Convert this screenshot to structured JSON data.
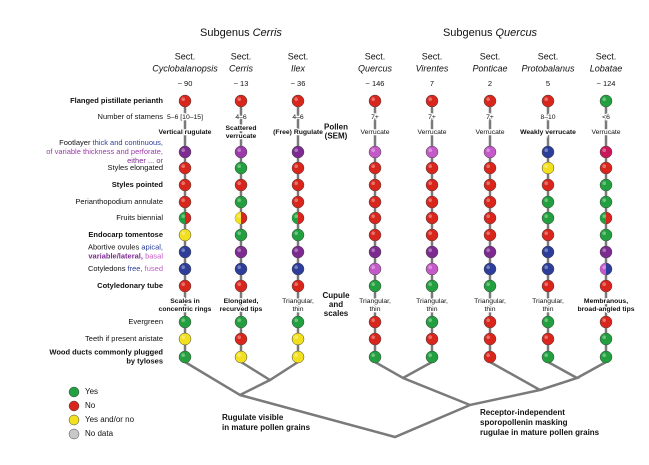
{
  "subgenera": [
    {
      "prefix": "Subgenus",
      "name": "Cerris"
    },
    {
      "prefix": "Subgenus",
      "name": "Quercus"
    }
  ],
  "sections": [
    {
      "prefix": "Sect.",
      "name": "Cyclobalanopsis",
      "count": "~ 90"
    },
    {
      "prefix": "Sect.",
      "name": "Cerris",
      "count": "~ 13"
    },
    {
      "prefix": "Sect.",
      "name": "Ilex",
      "count": "~ 36"
    },
    {
      "prefix": "Sect.",
      "name": "Quercus",
      "count": "~ 146"
    },
    {
      "prefix": "Sect.",
      "name": "Virentes",
      "count": "7"
    },
    {
      "prefix": "Sect.",
      "name": "Ponticae",
      "count": "2"
    },
    {
      "prefix": "Sect.",
      "name": "Protobalanus",
      "count": "5"
    },
    {
      "prefix": "Sect.",
      "name": "Lobatae",
      "count": "~ 124"
    }
  ],
  "rows": [
    {
      "label": [
        [
          {
            "text": "Flanged pistillate perianth"
          }
        ]
      ],
      "bold": true,
      "states": [
        "#d9261c",
        "#d9261c",
        "#d9261c",
        "#d9261c",
        "#d9261c",
        "#d9261c",
        "#d9261c",
        "#22a040"
      ]
    },
    {
      "label": [
        [
          {
            "text": "Number of stamens"
          }
        ]
      ],
      "texts": [
        {
          "lines": [
            "5–6 [10–15]"
          ]
        },
        {
          "lines": [
            "4–6"
          ]
        },
        {
          "lines": [
            "4–6"
          ]
        },
        {
          "lines": [
            "7+"
          ]
        },
        {
          "lines": [
            "7+"
          ]
        },
        {
          "lines": [
            "7+"
          ]
        },
        {
          "lines": [
            "8–10"
          ]
        },
        {
          "lines": [
            "<6"
          ]
        }
      ]
    },
    {
      "side_label": [
        "Pollen",
        "(SEM)"
      ],
      "texts": [
        {
          "lines": [
            "Vertical rugulate"
          ],
          "bold": true
        },
        {
          "lines": [
            "Scattered",
            "verrucate"
          ],
          "bold": true
        },
        {
          "lines": [
            "(Free) Rugulate"
          ],
          "bold": true
        },
        {
          "lines": [
            "Verrucate"
          ]
        },
        {
          "lines": [
            "Verrucate"
          ]
        },
        {
          "lines": [
            "Verrucate"
          ]
        },
        {
          "lines": [
            "Weakly verrucate"
          ],
          "bold": true
        },
        {
          "lines": [
            "Verrucate"
          ]
        }
      ]
    },
    {
      "label": [
        [
          {
            "text": "Footlayer "
          },
          {
            "text": "thick and continuous,",
            "color": "#2c3e99"
          }
        ],
        [
          {
            "text": "of variable thickness and perforate,",
            "color": "#9b3aa8"
          }
        ],
        [
          {
            "text": "either ... or",
            "color": "#7d2b90"
          }
        ]
      ],
      "states": [
        "#7d2b90",
        "#9b3aa8",
        "#7d2b90",
        "#c45ac8",
        "#c45ac8",
        "#c45ac8",
        "#2c3e99",
        "#c8175a"
      ]
    },
    {
      "label": [
        [
          {
            "text": "Styles elongated"
          }
        ]
      ],
      "states": [
        "#d9261c",
        "#22a040",
        "#d9261c",
        "#d9261c",
        "#d9261c",
        "#d9261c",
        "#f2e01f",
        "#d9261c"
      ]
    },
    {
      "label": [
        [
          {
            "text": "Styles pointed"
          }
        ]
      ],
      "bold": true,
      "states": [
        "#d9261c",
        "#d9261c",
        "#d9261c",
        "#d9261c",
        "#d9261c",
        "#d9261c",
        "#d9261c",
        "#22a040"
      ]
    },
    {
      "label": [
        [
          {
            "text": "Perianthopodium annulate"
          }
        ]
      ],
      "states": [
        "#d9261c",
        "#22a040",
        "#d9261c",
        "#d9261c",
        "#d9261c",
        "#d9261c",
        "#22a040",
        "#22a040"
      ]
    },
    {
      "label": [
        [
          {
            "text": "Fruits biennial"
          }
        ]
      ],
      "states": [
        [
          "#d9261c",
          "#22a040"
        ],
        [
          "#d9261c",
          "#f2e01f"
        ],
        [
          "#d9261c",
          "#22a040"
        ],
        "#d9261c",
        "#d9261c",
        "#d9261c",
        "#22a040",
        [
          "#d9261c",
          "#22a040"
        ]
      ]
    },
    {
      "label": [
        [
          {
            "text": "Endocarp tomentose"
          }
        ]
      ],
      "bold": true,
      "states": [
        "#f2e01f",
        "#22a040",
        "#22a040",
        "#d9261c",
        "#d9261c",
        "#d9261c",
        "#d9261c",
        "#22a040"
      ]
    },
    {
      "label": [
        [
          {
            "text": "Abortive ovules "
          },
          {
            "text": "apical,",
            "color": "#2c3e99"
          }
        ],
        [
          {
            "text": "variable/lateral,",
            "color": "#7d2b90",
            "bold": true
          },
          {
            "text": " basal",
            "color": "#c45ac8"
          }
        ]
      ],
      "states": [
        "#2c3e99",
        "#7d2b90",
        "#7d2b90",
        "#7d2b90",
        "#7d2b90",
        "#7d2b90",
        "#2c3e99",
        "#7d2b90"
      ]
    },
    {
      "label": [
        [
          {
            "text": "Cotyledons "
          },
          {
            "text": "free,",
            "color": "#2c3e99"
          },
          {
            "text": " fused",
            "color": "#c45ac8"
          }
        ]
      ],
      "states": [
        "#2c3e99",
        "#2c3e99",
        "#2c3e99",
        "#c45ac8",
        "#c45ac8",
        "#2c3e99",
        "#2c3e99",
        [
          "#2c3e99",
          "#c45ac8"
        ]
      ]
    },
    {
      "label": [
        [
          {
            "text": "Cotyledonary tube"
          }
        ]
      ],
      "bold": true,
      "states": [
        "#d9261c",
        "#d9261c",
        "#d9261c",
        "#22a040",
        "#22a040",
        "#22a040",
        "#d9261c",
        "#d9261c"
      ]
    },
    {
      "side_label": [
        "Cupule",
        "and",
        "scales"
      ],
      "texts": [
        {
          "lines": [
            "Scales in",
            "concentric rings"
          ],
          "bold": true
        },
        {
          "lines": [
            "Elongated,",
            "recurved tips"
          ],
          "bold": true
        },
        {
          "lines": [
            "Triangular,",
            "thin"
          ]
        },
        {
          "lines": [
            "Triangular,",
            "thin"
          ]
        },
        {
          "lines": [
            "Triangular,",
            "thin"
          ]
        },
        {
          "lines": [
            "Triangular,",
            "thin"
          ]
        },
        {
          "lines": [
            "Triangular,",
            "thin"
          ]
        },
        {
          "lines": [
            "Membranous,",
            "broad-angled tips"
          ],
          "bold": true
        }
      ]
    },
    {
      "label": [
        [
          {
            "text": "Evergreen"
          }
        ]
      ],
      "states": [
        "#22a040",
        "#22a040",
        "#22a040",
        "#d9261c",
        "#22a040",
        "#d9261c",
        "#22a040",
        "#d9261c"
      ]
    },
    {
      "label": [
        [
          {
            "text": "Teeth if present aristate"
          }
        ]
      ],
      "states": [
        "#f2e01f",
        "#d9261c",
        "#f2e01f",
        "#d9261c",
        "#d9261c",
        "#d9261c",
        "#d9261c",
        "#22a040"
      ]
    },
    {
      "label": [
        [
          {
            "text": "Wood ducts commonly plugged"
          }
        ],
        [
          {
            "text": "by tyloses"
          }
        ]
      ],
      "bold": true,
      "states": [
        "#22a040",
        "#f2e01f",
        "#f2e01f",
        "#22a040",
        "#22a040",
        "#d9261c",
        "#22a040",
        "#22a040"
      ]
    }
  ],
  "legend": [
    {
      "label": "Yes",
      "color": "#22a040"
    },
    {
      "label": "No",
      "color": "#d9261c"
    },
    {
      "label": "Yes and/or no",
      "color": "#f2e01f"
    },
    {
      "label": "No data",
      "color": "#c8c8c8"
    }
  ],
  "tree_labels": [
    [
      "Rugulate visible",
      "in mature pollen grains"
    ],
    [
      "Receptor-independent",
      "sporopollenin masking",
      "rugulae in mature pollen grains"
    ]
  ]
}
